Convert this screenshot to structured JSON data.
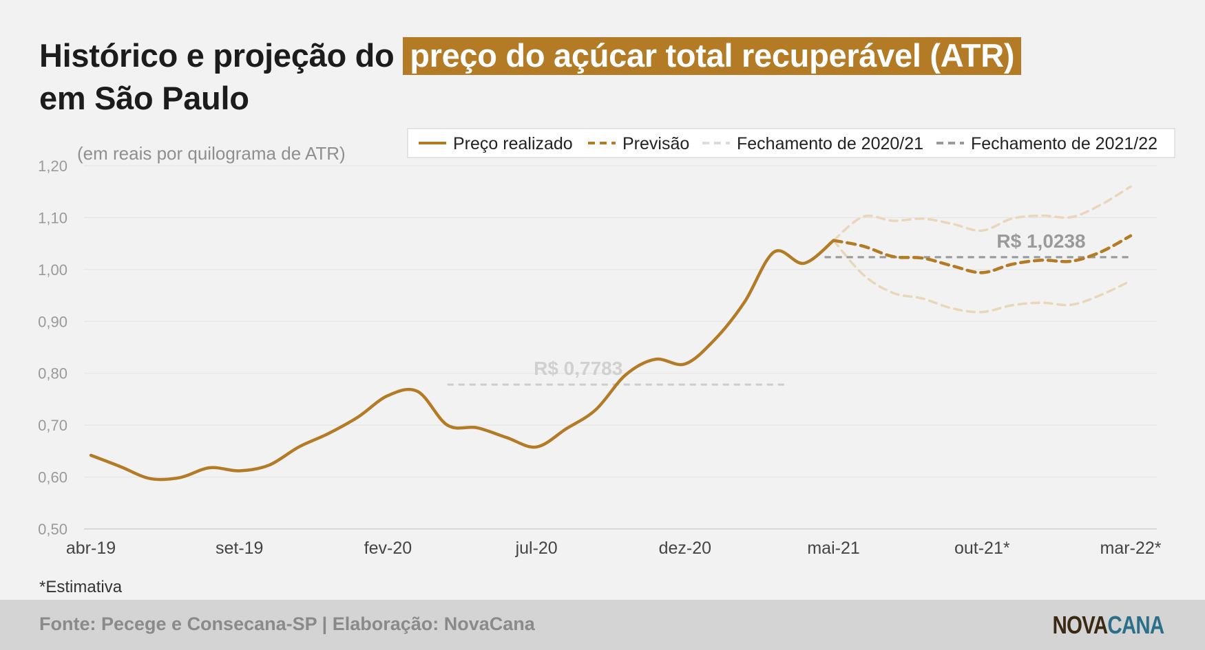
{
  "title": {
    "prefix": "Histórico e projeção do ",
    "highlight": "preço do açúcar total recuperável (ATR)",
    "line2": "em São Paulo"
  },
  "colors": {
    "realizado": "#b37b26",
    "previsao": "#b37b26",
    "fechamento_2020_21": "#dcdcdc",
    "fechamento_2021_22": "#999999",
    "band": "#ead6b9",
    "highlight_bg": "#b37b26"
  },
  "chart_data": {
    "type": "line",
    "unit_label": "(em reais por quilograma de ATR)",
    "ylim": [
      0.5,
      1.2
    ],
    "yticks": [
      "0,50",
      "0,60",
      "0,70",
      "0,80",
      "0,90",
      "1,00",
      "1,10",
      "1,20"
    ],
    "xlim": [
      0,
      35
    ],
    "x_tick_labels": [
      "abr-19",
      "set-19",
      "fev-20",
      "jul-20",
      "dez-20",
      "mai-21",
      "out-21*",
      "mar-22*"
    ],
    "x_tick_positions": [
      0,
      5,
      10,
      15,
      20,
      25,
      30,
      35
    ],
    "grid": true,
    "legend_position": "top-right",
    "legend": [
      "Preço realizado",
      "Previsão",
      "Fechamento de 2020/21",
      "Fechamento de 2021/22"
    ],
    "series": [
      {
        "name": "Preço realizado",
        "style": "solid",
        "x": [
          0,
          1,
          2,
          3,
          4,
          5,
          6,
          7,
          8,
          9,
          10,
          11,
          12,
          13,
          14,
          15,
          16,
          17,
          18,
          19,
          20,
          21,
          22,
          23,
          24,
          25
        ],
        "values": [
          0.642,
          0.62,
          0.597,
          0.599,
          0.618,
          0.612,
          0.623,
          0.658,
          0.684,
          0.716,
          0.757,
          0.765,
          0.7,
          0.695,
          0.676,
          0.658,
          0.693,
          0.73,
          0.797,
          0.827,
          0.818,
          0.865,
          0.937,
          1.034,
          1.012,
          1.056
        ]
      },
      {
        "name": "Previsão",
        "style": "dashed",
        "x": [
          25,
          26,
          27,
          28,
          29,
          30,
          31,
          32,
          33,
          34,
          35
        ],
        "values": [
          1.056,
          1.045,
          1.025,
          1.022,
          1.007,
          0.994,
          1.01,
          1.018,
          1.016,
          1.034,
          1.065
        ]
      }
    ],
    "bands": [
      {
        "name": "upper",
        "x": [
          25,
          26,
          27,
          28,
          29,
          30,
          31,
          32,
          33,
          34,
          35
        ],
        "values": [
          1.056,
          1.102,
          1.094,
          1.098,
          1.088,
          1.075,
          1.098,
          1.104,
          1.101,
          1.125,
          1.16
        ]
      },
      {
        "name": "lower",
        "x": [
          25,
          26,
          27,
          28,
          29,
          30,
          31,
          32,
          33,
          34,
          35
        ],
        "values": [
          1.056,
          0.99,
          0.955,
          0.944,
          0.925,
          0.918,
          0.931,
          0.936,
          0.932,
          0.951,
          0.978
        ]
      }
    ],
    "references": [
      {
        "name": "Fechamento de 2020/21",
        "value": 0.7783,
        "x_start": 12,
        "x_end": 23.5,
        "label": "R$ 0,7783"
      },
      {
        "name": "Fechamento de 2021/22",
        "value": 1.0238,
        "x_start": 24.7,
        "x_end": 35,
        "label": "R$ 1,0238"
      }
    ]
  },
  "footnote": "*Estimativa",
  "footer": {
    "source": "Fonte: Pecege e Consecana-SP  | Elaboração: NovaCana",
    "logo_a": "NOVA",
    "logo_b": "CANA"
  }
}
